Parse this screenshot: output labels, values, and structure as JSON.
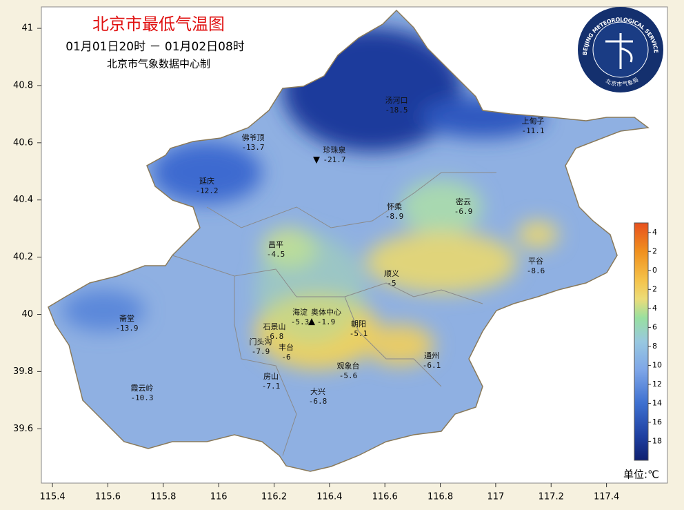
{
  "title": "北京市最低气温图",
  "period": "01月01日20时 － 01月02日08时",
  "producer": "北京市气象数据中心制",
  "logo": {
    "text_en": "BEIJING METEOROLOGICAL SERVICE",
    "text_cn": "北京市气象局"
  },
  "axes": {
    "xlim": [
      115.36,
      117.62
    ],
    "ylim": [
      39.41,
      41.075
    ],
    "xticks": [
      115.4,
      115.6,
      115.8,
      116,
      116.2,
      116.4,
      116.6,
      116.8,
      117,
      117.2,
      117.4
    ],
    "yticks": [
      39.6,
      39.8,
      40,
      40.2,
      40.4,
      40.6,
      40.8,
      41
    ]
  },
  "stations": [
    {
      "name": "汤河口",
      "value": -18.5
    },
    {
      "name": "上甸子",
      "value": -11.1
    },
    {
      "name": "佛爷顶",
      "value": -13.7
    },
    {
      "name": "珍珠泉",
      "value": -21.7
    },
    {
      "name": "延庆",
      "value": -12.2
    },
    {
      "name": "怀柔",
      "value": -8.9
    },
    {
      "name": "密云",
      "value": -6.9
    },
    {
      "name": "昌平",
      "value": -4.5
    },
    {
      "name": "平谷",
      "value": -8.6
    },
    {
      "name": "顺义",
      "value": -5.0
    },
    {
      "name": "海淀",
      "value": -5.3
    },
    {
      "name": "奥体中心",
      "value": -1.9
    },
    {
      "name": "石景山",
      "value": -6.8
    },
    {
      "name": "朝阳",
      "value": -5.1
    },
    {
      "name": "门头沟",
      "value": -7.9
    },
    {
      "name": "丰台",
      "value": -6.0
    },
    {
      "name": "通州",
      "value": -6.1
    },
    {
      "name": "观象台",
      "value": -5.6
    },
    {
      "name": "霞云岭",
      "value": -10.3
    },
    {
      "name": "房山",
      "value": -7.1
    },
    {
      "name": "大兴",
      "value": -6.8
    },
    {
      "name": "斋堂",
      "value": -13.9
    }
  ],
  "colorbar": {
    "lim": [
      -20,
      5
    ],
    "ticks": [
      4,
      2,
      0,
      {
        "value": -2,
        "label": "2"
      },
      {
        "value": -4,
        "label": "4"
      },
      {
        "value": -6,
        "label": "6"
      },
      {
        "value": -8,
        "label": "8"
      },
      {
        "value": -10,
        "label": "10"
      },
      {
        "value": -12,
        "label": "12"
      },
      {
        "value": -14,
        "label": "14"
      },
      {
        "value": -16,
        "label": "16"
      },
      {
        "value": -18,
        "label": "18"
      }
    ],
    "unit": "单位:℃"
  }
}
